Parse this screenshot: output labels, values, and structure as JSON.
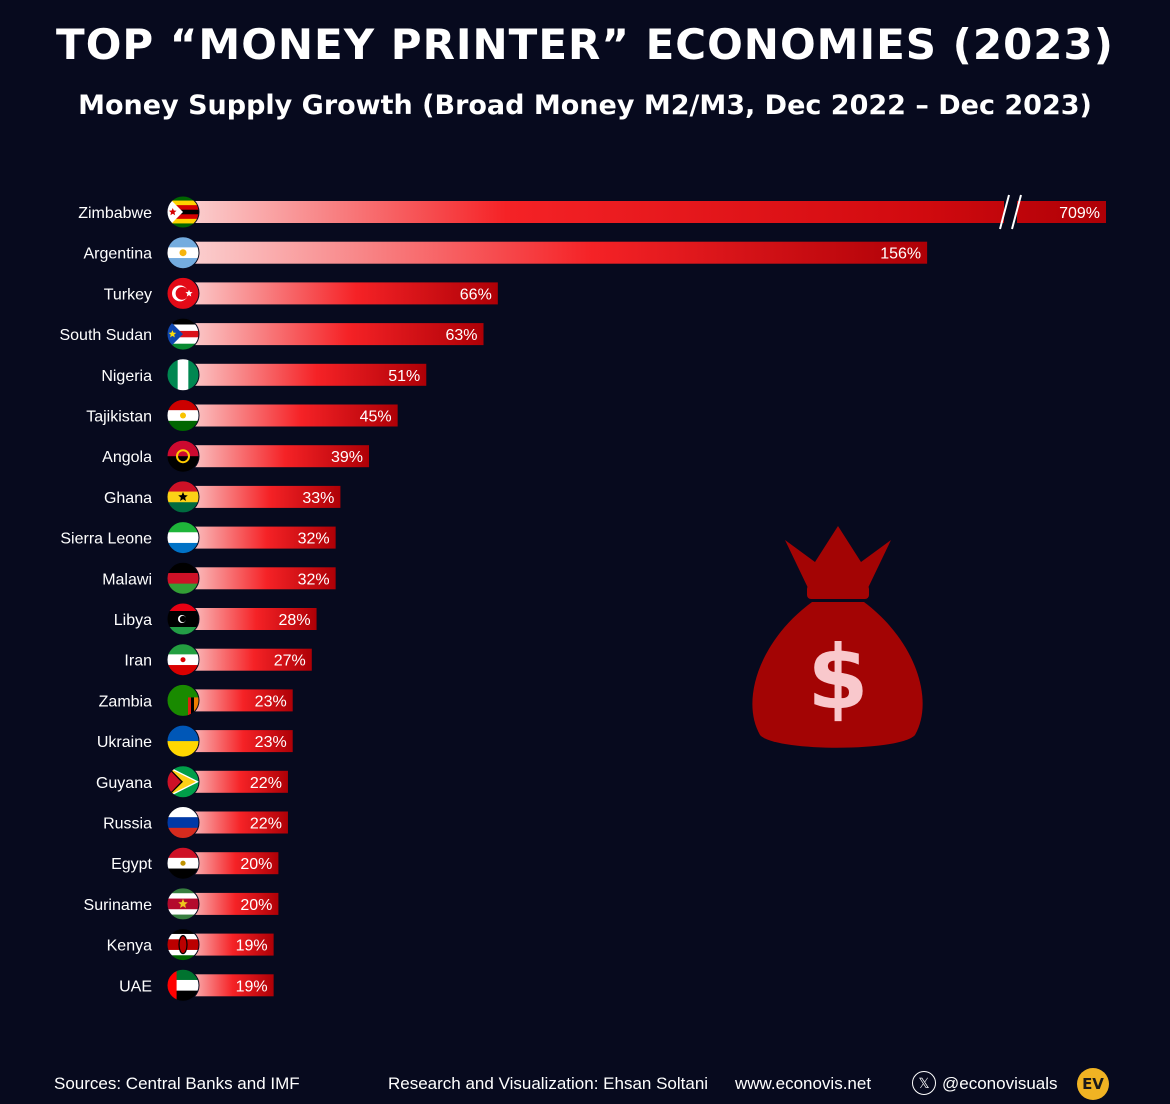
{
  "chart_data": {
    "type": "bar",
    "orientation": "horizontal",
    "title": "TOP “MONEY PRINTER” ECONOMIES (2023)",
    "subtitle": "Money Supply Growth (Broad Money M2/M3, Dec 2022 – Dec 2023)",
    "categories": [
      "Zimbabwe",
      "Argentina",
      "Turkey",
      "South Sudan",
      "Nigeria",
      "Tajikistan",
      "Angola",
      "Ghana",
      "Sierra Leone",
      "Malawi",
      "Libya",
      "Iran",
      "Zambia",
      "Ukraine",
      "Guyana",
      "Russia",
      "Egypt",
      "Suriname",
      "Kenya",
      "UAE"
    ],
    "values": [
      709,
      156,
      66,
      63,
      51,
      45,
      39,
      33,
      32,
      32,
      28,
      27,
      23,
      23,
      22,
      22,
      20,
      20,
      19,
      19
    ],
    "value_labels": [
      "709%",
      "156%",
      "66%",
      "63%",
      "51%",
      "45%",
      "39%",
      "33%",
      "32%",
      "32%",
      "28%",
      "27%",
      "23%",
      "23%",
      "22%",
      "22%",
      "20%",
      "20%",
      "19%",
      "19%"
    ],
    "axis_break_on": "Zimbabwe",
    "bar_gradient": [
      "#fbd3d3",
      "#f52226",
      "#ae0006"
    ],
    "flags": [
      {
        "kind": "zimbabwe"
      },
      {
        "kind": "argentina"
      },
      {
        "kind": "turkey"
      },
      {
        "kind": "south-sudan"
      },
      {
        "kind": "nigeria"
      },
      {
        "kind": "tajikistan"
      },
      {
        "kind": "angola"
      },
      {
        "kind": "ghana"
      },
      {
        "kind": "sierra-leone"
      },
      {
        "kind": "malawi"
      },
      {
        "kind": "libya"
      },
      {
        "kind": "iran"
      },
      {
        "kind": "zambia"
      },
      {
        "kind": "ukraine"
      },
      {
        "kind": "guyana"
      },
      {
        "kind": "russia"
      },
      {
        "kind": "egypt"
      },
      {
        "kind": "suriname"
      },
      {
        "kind": "kenya"
      },
      {
        "kind": "uae"
      }
    ]
  },
  "illustration": {
    "icon": "money-bag-icon",
    "symbol": "$",
    "color": "#a30404"
  },
  "footer": {
    "sources": "Sources: Central Banks and IMF",
    "credit": "Research and Visualization: Ehsan Soltani",
    "website": "www.econovis.net",
    "x_icon": "𝕏",
    "handle": "@econovisuals",
    "logo_text": "EV"
  }
}
